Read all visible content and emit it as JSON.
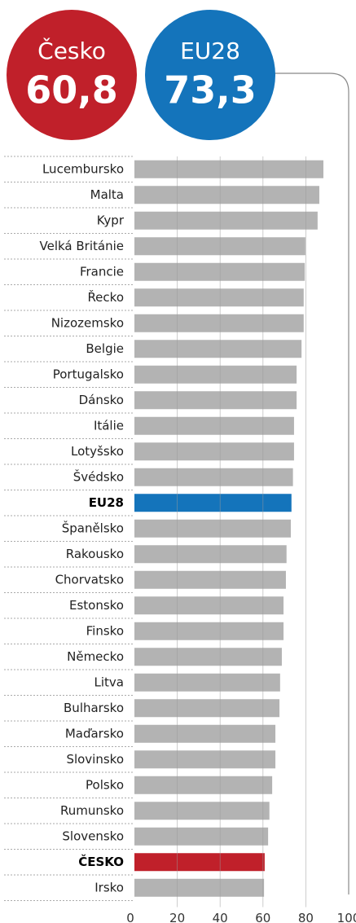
{
  "chart_data": {
    "type": "barh",
    "highlights": [
      {
        "name": "Česko",
        "value": 60.8,
        "value_label": "60,8",
        "color": "#c0202a"
      },
      {
        "name": "EU28",
        "value": 73.3,
        "value_label": "73,3",
        "color": "#1474bb"
      }
    ],
    "categories": [
      "Lucembursko",
      "Malta",
      "Kypr",
      "Velká Británie",
      "Francie",
      "Řecko",
      "Nizozemsko",
      "Belgie",
      "Portugalsko",
      "Dánsko",
      "Itálie",
      "Lotyšsko",
      "Švédsko",
      "EU28",
      "Španělsko",
      "Rakousko",
      "Chorvatsko",
      "Estonsko",
      "Finsko",
      "Německo",
      "Litva",
      "Bulharsko",
      "Maďarsko",
      "Slovinsko",
      "Polsko",
      "Rumunsko",
      "Slovensko",
      "ČESKO",
      "Irsko"
    ],
    "values": [
      88.2,
      86.3,
      85.5,
      79.8,
      79.5,
      79,
      79,
      78,
      75.7,
      75.7,
      74.5,
      74.5,
      74,
      73.3,
      73,
      71,
      70.7,
      69.6,
      69.6,
      68.8,
      68,
      67.7,
      65.8,
      65.8,
      64.3,
      63,
      62.4,
      60.8,
      60.5
    ],
    "colors": [
      "#b3b3b3",
      "#b3b3b3",
      "#b3b3b3",
      "#b3b3b3",
      "#b3b3b3",
      "#b3b3b3",
      "#b3b3b3",
      "#b3b3b3",
      "#b3b3b3",
      "#b3b3b3",
      "#b3b3b3",
      "#b3b3b3",
      "#b3b3b3",
      "#1474bb",
      "#b3b3b3",
      "#b3b3b3",
      "#b3b3b3",
      "#b3b3b3",
      "#b3b3b3",
      "#b3b3b3",
      "#b3b3b3",
      "#b3b3b3",
      "#b3b3b3",
      "#b3b3b3",
      "#b3b3b3",
      "#b3b3b3",
      "#b3b3b3",
      "#c0202a",
      "#b3b3b3"
    ],
    "default_color": "#b3b3b3",
    "xlim": [
      0,
      100
    ],
    "xticks": [
      0,
      20,
      40,
      60,
      80,
      100
    ],
    "grid": true
  }
}
